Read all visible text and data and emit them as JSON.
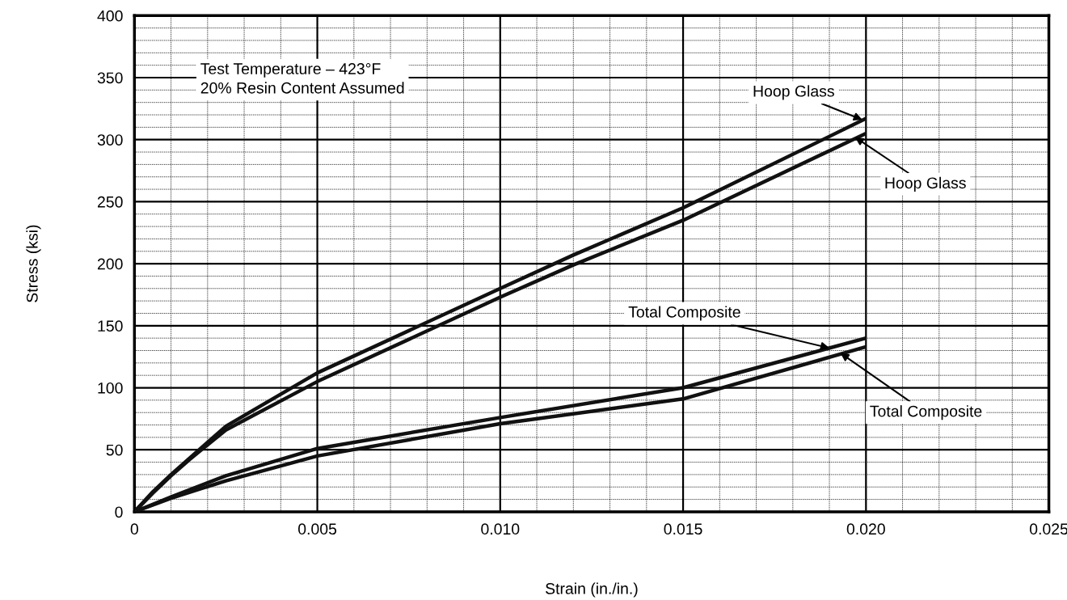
{
  "chart_data": {
    "type": "line",
    "xlabel": "Strain (in./in.)",
    "ylabel": "Stress (ksi)",
    "xlim": [
      0,
      0.025
    ],
    "ylim": [
      0,
      400
    ],
    "xticks": [
      {
        "value": 0,
        "label": "0"
      },
      {
        "value": 0.005,
        "label": "0.005"
      },
      {
        "value": 0.01,
        "label": "0.010"
      },
      {
        "value": 0.015,
        "label": "0.015"
      },
      {
        "value": 0.02,
        "label": "0.020"
      },
      {
        "value": 0.025,
        "label": "0.025"
      }
    ],
    "yticks": [
      0,
      50,
      100,
      150,
      200,
      250,
      300,
      350,
      400
    ],
    "grid": true,
    "marker": "none",
    "line_style": "solid",
    "series": [
      {
        "color": "#111111",
        "x": [
          0,
          0.0005,
          0.001,
          0.0015,
          0.0025,
          0.005,
          0.01,
          0.012,
          0.015,
          0.02
        ],
        "values": [
          0,
          16,
          30,
          43,
          69,
          112,
          180,
          207,
          245,
          317
        ]
      },
      {
        "color": "#111111",
        "x": [
          0,
          0.0005,
          0.001,
          0.0015,
          0.0025,
          0.005,
          0.01,
          0.012,
          0.015,
          0.02
        ],
        "values": [
          0,
          15,
          29,
          42,
          66,
          105,
          173,
          199,
          235,
          305
        ]
      },
      {
        "color": "#111111",
        "x": [
          0,
          0.001,
          0.0025,
          0.005,
          0.01,
          0.015,
          0.02
        ],
        "values": [
          0,
          12,
          29,
          51,
          76,
          100,
          140
        ]
      },
      {
        "color": "#111111",
        "x": [
          0,
          0.001,
          0.0025,
          0.005,
          0.01,
          0.015,
          0.02
        ],
        "values": [
          0,
          11,
          25,
          45,
          71,
          91,
          133
        ]
      }
    ],
    "annotations": [
      "Test Temperature – 423°F\n20% Resin Content Assumed",
      {
        "text": "Hoop Glass",
        "x": 0.0199,
        "y": 316
      },
      {
        "text": "Hoop Glass",
        "x": 0.0197,
        "y": 302
      },
      {
        "text": "Total Composite",
        "x": 0.019,
        "y": 132
      },
      {
        "text": "Total Composite",
        "x": 0.0193,
        "y": 128
      }
    ]
  }
}
